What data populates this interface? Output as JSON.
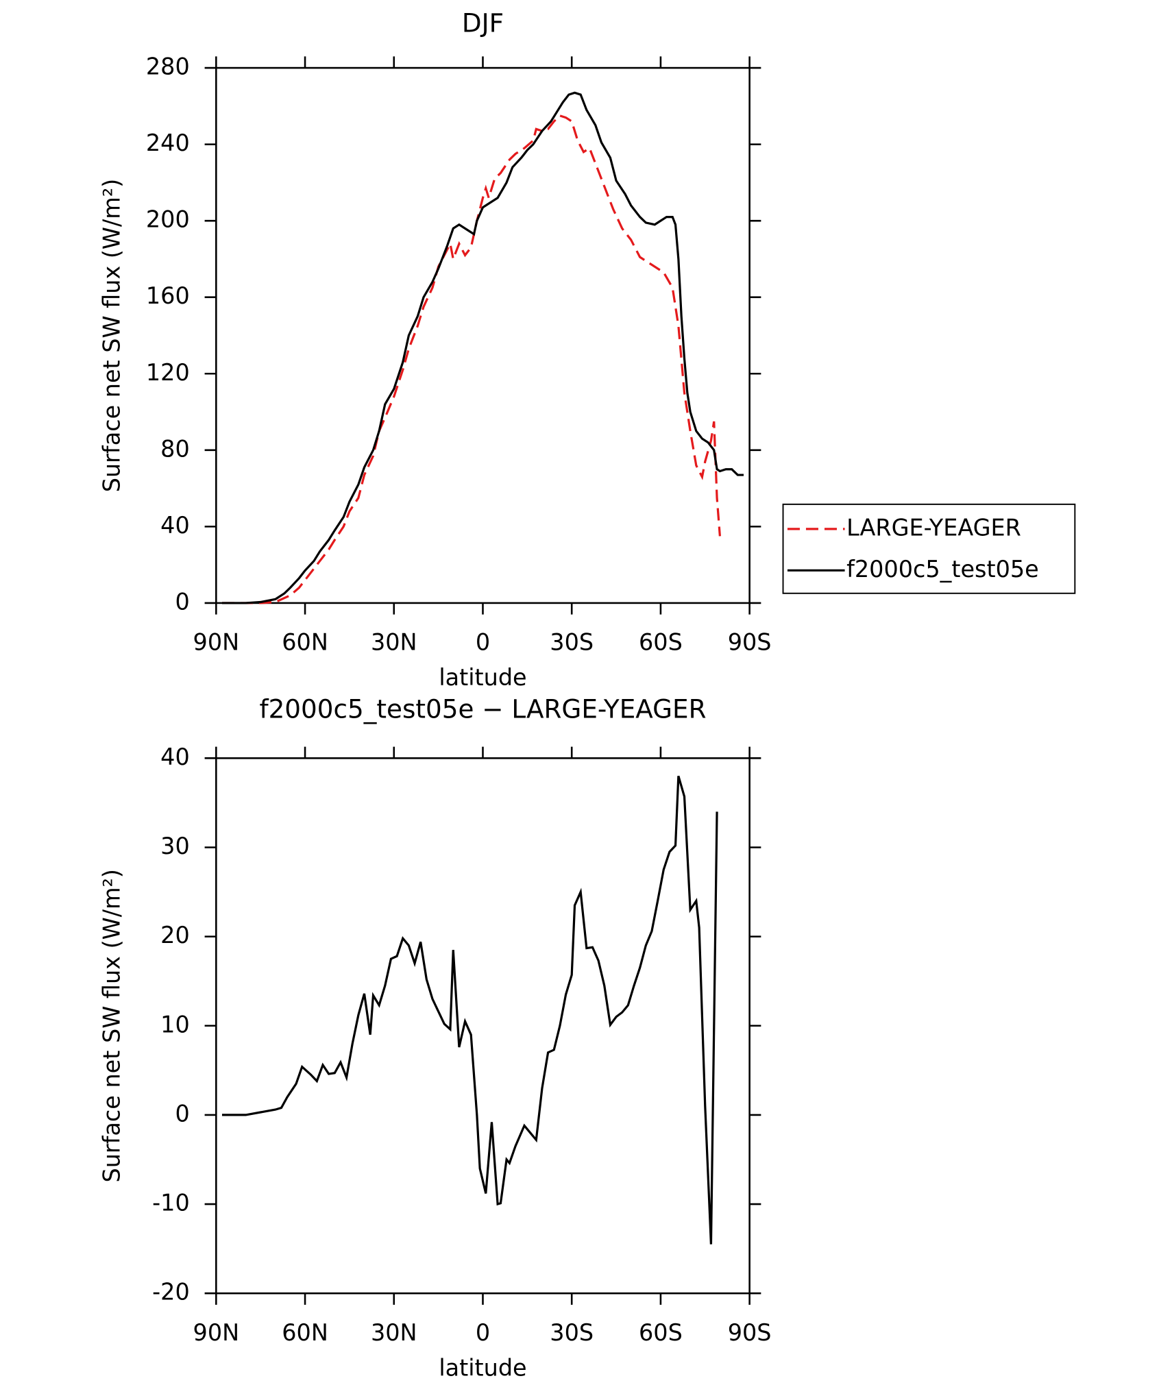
{
  "chart_data": [
    {
      "type": "line",
      "title": "DJF",
      "x_label": "latitude",
      "y_label": "Surface net SW flux (W/m²)",
      "xlim": [
        90,
        -90
      ],
      "xticks": [
        {
          "value": 90,
          "label": "90N"
        },
        {
          "value": 60,
          "label": "60N"
        },
        {
          "value": 30,
          "label": "30N"
        },
        0,
        {
          "value": -30,
          "label": "30S"
        },
        {
          "value": -60,
          "label": "60S"
        },
        {
          "value": -90,
          "label": "90S"
        }
      ],
      "ylim": [
        0,
        280
      ],
      "yticks": [
        0,
        40,
        80,
        120,
        160,
        200,
        240,
        280
      ],
      "legend": "right",
      "series": [
        {
          "name": "LARGE-YEAGER",
          "color": "#e41a1c",
          "dash": true,
          "x": [
            88,
            80,
            75,
            70,
            65,
            62,
            60,
            57,
            55,
            52,
            50,
            47,
            45,
            42,
            40,
            37,
            35,
            33,
            30,
            27,
            25,
            22,
            20,
            17,
            15,
            13,
            11,
            10,
            8,
            6,
            4,
            2,
            0,
            -1,
            -2,
            -4,
            -6,
            -9,
            -11,
            -14,
            -17,
            -18,
            -20,
            -22,
            -24,
            -26,
            -28,
            -30,
            -32,
            -34,
            -36,
            -38,
            -41,
            -44,
            -47,
            -50,
            -53,
            -56,
            -59,
            -61,
            -64,
            -66,
            -68,
            -70,
            -72,
            -74,
            -75,
            -77,
            -78,
            -79,
            -80
          ],
          "values": [
            0,
            0,
            0,
            0.5,
            4,
            8,
            12,
            18,
            22,
            28,
            33,
            40,
            48,
            55,
            67,
            77,
            90,
            97,
            108,
            122,
            133,
            145,
            155,
            165,
            176,
            182,
            188,
            180,
            188,
            182,
            186,
            200,
            212,
            217,
            212,
            222,
            225,
            232,
            235,
            238,
            242,
            248,
            247,
            248,
            252,
            255,
            254,
            252,
            242,
            236,
            238,
            230,
            218,
            206,
            196,
            190,
            181,
            178,
            175,
            173,
            165,
            145,
            110,
            90,
            72,
            66,
            74,
            85,
            95,
            55,
            35
          ]
        },
        {
          "name": "f2000c5_test05e",
          "color": "#000000",
          "dash": false,
          "x": [
            88,
            80,
            75,
            70,
            67,
            65,
            62,
            60,
            57,
            55,
            52,
            50,
            47,
            45,
            42,
            40,
            37,
            35,
            33,
            30,
            27,
            25,
            22,
            20,
            17,
            15,
            12,
            10,
            8,
            5,
            3,
            2,
            0,
            -3,
            -5,
            -8,
            -10,
            -13,
            -15,
            -17,
            -20,
            -23,
            -25,
            -27,
            -29,
            -31,
            -33,
            -35,
            -38,
            -40,
            -43,
            -45,
            -48,
            -50,
            -53,
            -55,
            -58,
            -60,
            -62,
            -64,
            -65,
            -66,
            -67,
            -68,
            -69,
            -70,
            -71,
            -72,
            -74,
            -76,
            -78,
            -79,
            -80,
            -82,
            -84,
            -86,
            -88
          ],
          "values": [
            0,
            0,
            0.5,
            2,
            5,
            8,
            13,
            17,
            22,
            27,
            33,
            38,
            45,
            53,
            62,
            71,
            80,
            90,
            104,
            112,
            126,
            140,
            150,
            160,
            168,
            175,
            187,
            196,
            198,
            195,
            193,
            200,
            207,
            210,
            212,
            220,
            228,
            233,
            237,
            240,
            247,
            252,
            257,
            262,
            266,
            267,
            266,
            258,
            250,
            241,
            233,
            221,
            214,
            208,
            202,
            199,
            198,
            200,
            202,
            202,
            198,
            180,
            150,
            128,
            110,
            100,
            95,
            90,
            86,
            84,
            80,
            70,
            69,
            70,
            70,
            67,
            67
          ]
        }
      ]
    },
    {
      "type": "line",
      "title": "f2000c5_test05e − LARGE-YEAGER",
      "x_label": "latitude",
      "y_label": "Surface net SW flux (W/m²)",
      "xlim": [
        90,
        -90
      ],
      "xticks": [
        {
          "value": 90,
          "label": "90N"
        },
        {
          "value": 60,
          "label": "60N"
        },
        {
          "value": 30,
          "label": "30N"
        },
        0,
        {
          "value": -30,
          "label": "30S"
        },
        {
          "value": -60,
          "label": "60S"
        },
        {
          "value": -90,
          "label": "90S"
        }
      ],
      "ylim": [
        -20,
        40
      ],
      "yticks": [
        -20,
        -10,
        0,
        10,
        20,
        30,
        40
      ],
      "series": [
        {
          "color": "#000000",
          "dash": false,
          "x": [
            88,
            80,
            75,
            70,
            68,
            66,
            63,
            61,
            58,
            56,
            54,
            52,
            50,
            48,
            46,
            44,
            42,
            40,
            38,
            37,
            35,
            33,
            31,
            29,
            27,
            25,
            23,
            21,
            19,
            17,
            15,
            13,
            11,
            10,
            8,
            6,
            4,
            2,
            1,
            -1,
            -3,
            -5,
            -6,
            -8,
            -9,
            -11,
            -14,
            -16,
            -18,
            -20,
            -22,
            -24,
            -26,
            -28,
            -30,
            -31,
            -33,
            -35,
            -37,
            -39,
            -41,
            -43,
            -45,
            -47,
            -49,
            -51,
            -53,
            -55,
            -57,
            -59,
            -61,
            -63,
            -65,
            -66,
            -68,
            -70,
            -72,
            -73,
            -75,
            -77,
            -79
          ],
          "values": [
            0,
            0,
            0.3,
            0.6,
            0.8,
            2,
            3.5,
            5.4,
            4.5,
            3.8,
            5.6,
            4.6,
            4.7,
            5.9,
            4.2,
            8,
            11.2,
            13.6,
            9,
            13.4,
            12.3,
            14.5,
            17.5,
            17.8,
            19.8,
            19,
            17,
            19.4,
            15.2,
            13,
            11.6,
            10.2,
            9.6,
            18.5,
            7.6,
            10.5,
            9,
            0,
            -6,
            -8.8,
            -0.8,
            -10,
            -9.9,
            -5,
            -5.4,
            -3.5,
            -1.2,
            -2,
            -2.8,
            3,
            7,
            7.3,
            10,
            13.5,
            15.7,
            23.5,
            25,
            18.7,
            18.8,
            17.3,
            14.5,
            10.1,
            11,
            11.5,
            12.3,
            14.5,
            16.5,
            19,
            20.6,
            24,
            27.5,
            29.5,
            30.2,
            38,
            35.7,
            23,
            24,
            21,
            1,
            -14.5,
            34
          ]
        }
      ]
    }
  ]
}
